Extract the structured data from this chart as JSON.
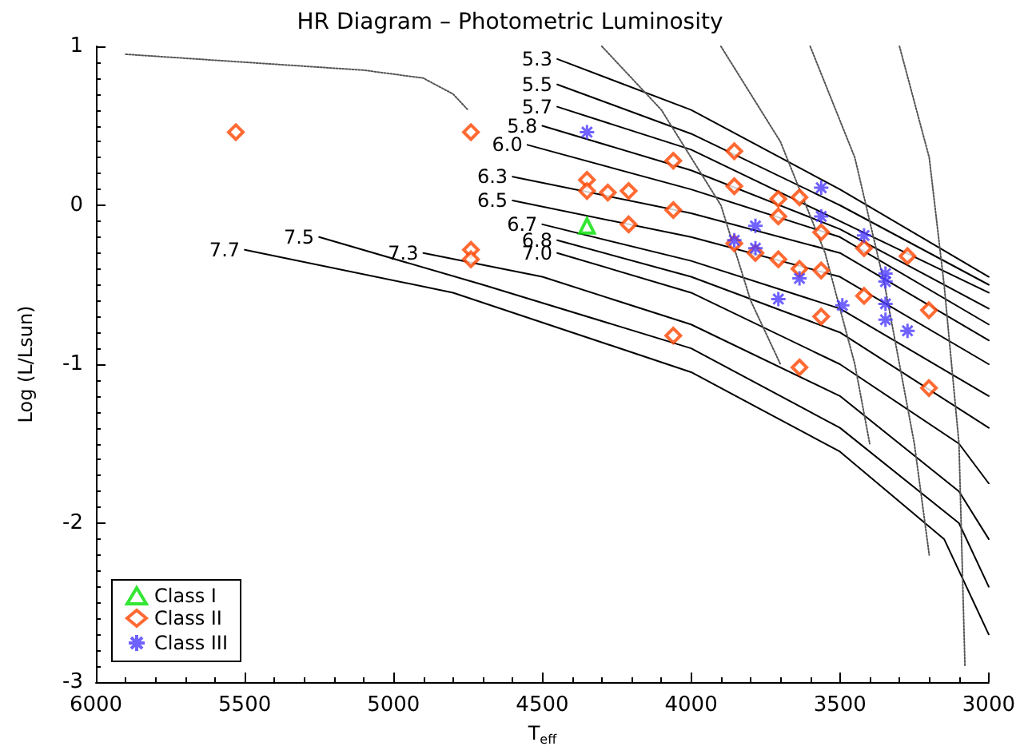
{
  "chart_data": {
    "type": "scatter",
    "title": "HR Diagram – Photometric Luminosity",
    "xlabel": "T$_{eff}$",
    "ylabel": "Log (L/Lsun)",
    "xlim": [
      6000,
      3000
    ],
    "xticks": [
      6000,
      5500,
      5000,
      4500,
      4000,
      3500,
      3000
    ],
    "ylim": [
      -3,
      1
    ],
    "yticks": [
      -3,
      -2,
      -1,
      0,
      1
    ],
    "grid": false,
    "legend": "bottom left",
    "series": [
      {
        "name": "Class I",
        "color": "#00e000",
        "marker": "triangle",
        "x": [
          4350
        ],
        "values": [
          -0.13
        ]
      },
      {
        "name": "Class II",
        "color": "#ff4500",
        "marker": "diamond",
        "x": [
          5530,
          4740,
          4740,
          4740,
          4350,
          4350,
          4280,
          4210,
          4210,
          4060,
          4060,
          4060,
          3855,
          3855,
          3855,
          3784,
          3707,
          3707,
          3707,
          3636,
          3636,
          3636,
          3563,
          3563,
          3563,
          3419,
          3419,
          3273,
          3201,
          3201
        ],
        "values": [
          0.46,
          0.46,
          -0.28,
          -0.34,
          0.16,
          0.09,
          0.08,
          0.09,
          -0.12,
          0.28,
          -0.03,
          -0.82,
          0.34,
          0.12,
          -0.24,
          -0.3,
          0.04,
          -0.07,
          -0.34,
          0.05,
          -0.4,
          -1.02,
          -0.17,
          -0.41,
          -0.7,
          -0.27,
          -0.57,
          -0.32,
          -0.66,
          -1.15
        ]
      },
      {
        "name": "Class III",
        "color": "#4b3bff",
        "marker": "cross",
        "x": [
          4350,
          3855,
          3784,
          3784,
          3707,
          3636,
          3563,
          3563,
          3492,
          3419,
          3347,
          3347,
          3347,
          3347,
          3273
        ],
        "values": [
          0.46,
          -0.22,
          -0.13,
          -0.27,
          -0.59,
          -0.46,
          0.11,
          -0.07,
          -0.63,
          -0.19,
          -0.43,
          -0.48,
          -0.62,
          -0.72,
          -0.79
        ]
      },
      {
        "type": "line",
        "name": "5.3",
        "color": "#000000",
        "line_style": "solid",
        "x": [
          4450,
          4000,
          3500,
          3000
        ],
        "values": [
          0.92,
          0.6,
          0.1,
          -0.45
        ]
      },
      {
        "type": "line",
        "name": "5.5",
        "color": "#000000",
        "line_style": "solid",
        "x": [
          4450,
          4000,
          3500,
          3000
        ],
        "values": [
          0.76,
          0.45,
          0.0,
          -0.5
        ]
      },
      {
        "type": "line",
        "name": "5.7",
        "color": "#000000",
        "line_style": "solid",
        "x": [
          4450,
          4000,
          3500,
          3000
        ],
        "values": [
          0.62,
          0.35,
          -0.1,
          -0.55
        ]
      },
      {
        "type": "line",
        "name": "5.8",
        "color": "#000000",
        "line_style": "solid",
        "x": [
          4500,
          4000,
          3500,
          3000
        ],
        "values": [
          0.5,
          0.22,
          -0.15,
          -0.65
        ]
      },
      {
        "type": "line",
        "name": "6.0",
        "color": "#000000",
        "line_style": "solid",
        "x": [
          4550,
          4000,
          3500,
          3000
        ],
        "values": [
          0.38,
          0.1,
          -0.2,
          -0.75
        ]
      },
      {
        "type": "line",
        "name": "6.3",
        "color": "#000000",
        "line_style": "solid",
        "x": [
          4600,
          4000,
          3500,
          3000
        ],
        "values": [
          0.18,
          -0.05,
          -0.3,
          -0.85
        ]
      },
      {
        "type": "line",
        "name": "6.5",
        "color": "#000000",
        "line_style": "solid",
        "x": [
          4600,
          4000,
          3500,
          3000
        ],
        "values": [
          0.03,
          -0.2,
          -0.45,
          -1.0
        ]
      },
      {
        "type": "line",
        "name": "6.7",
        "color": "#000000",
        "line_style": "solid",
        "x": [
          4500,
          4000,
          3500,
          3000
        ],
        "values": [
          -0.12,
          -0.35,
          -0.65,
          -1.2
        ]
      },
      {
        "type": "line",
        "name": "6.8",
        "color": "#000000",
        "line_style": "solid",
        "x": [
          4450,
          4000,
          3500,
          3000
        ],
        "values": [
          -0.22,
          -0.45,
          -0.8,
          -1.4
        ]
      },
      {
        "type": "line",
        "name": "7.0",
        "color": "#000000",
        "line_style": "solid",
        "x": [
          4450,
          4000,
          3500,
          3100,
          3000
        ],
        "values": [
          -0.3,
          -0.55,
          -1.0,
          -1.5,
          -1.75
        ]
      },
      {
        "type": "line",
        "name": "7.3",
        "color": "#000000",
        "line_style": "solid",
        "x": [
          4900,
          4500,
          4000,
          3500,
          3100,
          3000
        ],
        "values": [
          -0.3,
          -0.45,
          -0.75,
          -1.2,
          -1.8,
          -2.1
        ]
      },
      {
        "type": "line",
        "name": "7.5",
        "color": "#000000",
        "line_style": "solid",
        "x": [
          5250,
          4700,
          4000,
          3500,
          3100,
          3000
        ],
        "values": [
          -0.2,
          -0.5,
          -0.9,
          -1.4,
          -2.0,
          -2.4
        ]
      },
      {
        "type": "line",
        "name": "7.7",
        "color": "#000000",
        "line_style": "solid",
        "x": [
          5500,
          4800,
          4000,
          3500,
          3150,
          3000
        ],
        "values": [
          -0.28,
          -0.55,
          -1.05,
          -1.55,
          -2.1,
          -2.7
        ]
      },
      {
        "type": "line",
        "color": "#555555",
        "line_style": "dotted",
        "x": [
          3300,
          3200,
          3150,
          3100,
          3080
        ],
        "values": [
          1.0,
          0.3,
          -0.5,
          -1.5,
          -2.9
        ]
      },
      {
        "type": "line",
        "color": "#555555",
        "line_style": "dotted",
        "x": [
          3600,
          3450,
          3350,
          3250,
          3200
        ],
        "values": [
          1.0,
          0.3,
          -0.5,
          -1.5,
          -2.2
        ]
      },
      {
        "type": "line",
        "color": "#555555",
        "line_style": "dotted",
        "x": [
          3900,
          3700,
          3550,
          3450,
          3400
        ],
        "values": [
          1.0,
          0.4,
          -0.3,
          -1.0,
          -1.5
        ]
      },
      {
        "type": "line",
        "color": "#555555",
        "line_style": "dotted",
        "x": [
          4300,
          4100,
          3900,
          3800,
          3700
        ],
        "values": [
          1.0,
          0.6,
          0.0,
          -0.6,
          -1.0
        ]
      },
      {
        "type": "line",
        "color": "#555555",
        "line_style": "dotted",
        "x": [
          5900,
          5500,
          5100,
          4900,
          4800,
          4750
        ],
        "values": [
          0.95,
          0.9,
          0.85,
          0.8,
          0.7,
          0.6
        ]
      }
    ]
  }
}
